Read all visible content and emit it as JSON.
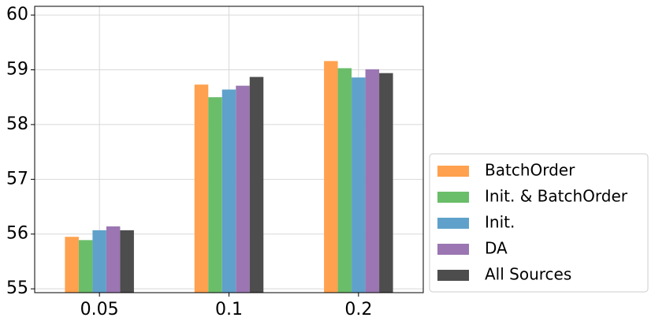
{
  "chart_data": {
    "type": "bar",
    "categories": [
      "0.05",
      "0.1",
      "0.2"
    ],
    "series": [
      {
        "name": "BatchOrder",
        "color": "#ffa14e",
        "values": [
          55.95,
          58.73,
          59.16
        ]
      },
      {
        "name": "Init. & BatchOrder",
        "color": "#6abd69",
        "values": [
          55.89,
          58.5,
          59.03
        ]
      },
      {
        "name": "Init.",
        "color": "#5fa1cb",
        "values": [
          56.07,
          58.64,
          58.86
        ]
      },
      {
        "name": "DA",
        "color": "#9b76b2",
        "values": [
          56.14,
          58.71,
          59.01
        ]
      },
      {
        "name": "All Sources",
        "color": "#4d4d4d",
        "values": [
          56.07,
          58.87,
          58.94
        ]
      }
    ],
    "ylim": [
      54.93,
      60.16
    ],
    "yticks": [
      55,
      56,
      57,
      58,
      59,
      60
    ],
    "grid": true,
    "legend": "outside-lower-right"
  }
}
